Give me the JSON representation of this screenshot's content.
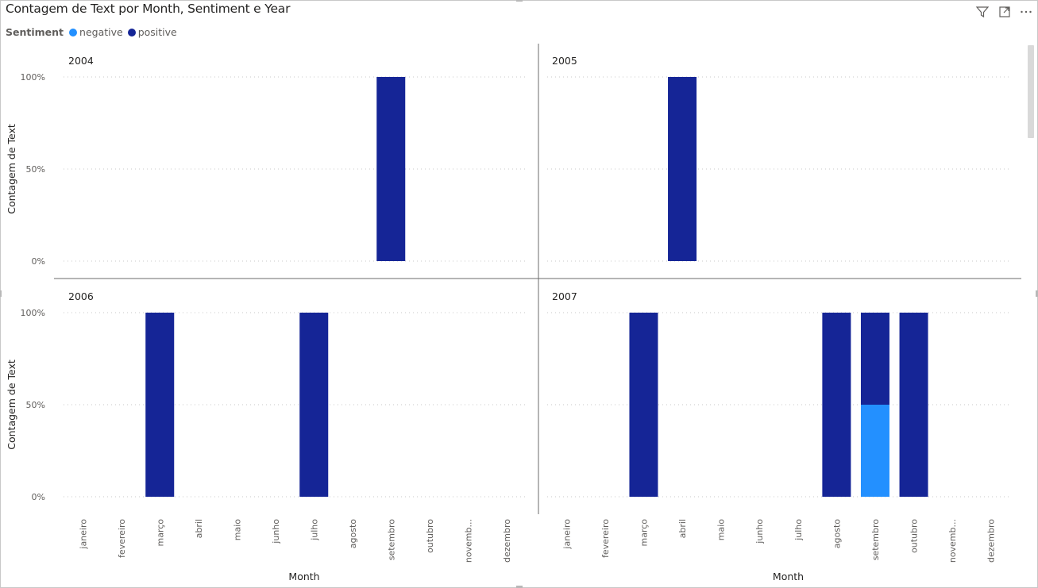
{
  "visual": {
    "title": "Contagem de Text por Month, Sentiment e Year",
    "legend_title": "Sentiment",
    "legend_items": [
      {
        "label": "negative",
        "color": "#2390ff"
      },
      {
        "label": "positive",
        "color": "#152596"
      }
    ],
    "header_icons": [
      "filter-icon",
      "focus-mode-icon",
      "more-options-icon"
    ]
  },
  "chart_data": {
    "type": "bar",
    "stacked": "100%",
    "xlabel": "Month",
    "ylabel": "Contagem de Text",
    "y_ticks": [
      "0%",
      "50%",
      "100%"
    ],
    "ylim": [
      0,
      1
    ],
    "grid": true,
    "legend_placement": "top-left",
    "categories": [
      "janeiro",
      "fevereiro",
      "março",
      "abril",
      "maio",
      "junho",
      "julho",
      "agosto",
      "setembro",
      "outubro",
      "novemb...",
      "dezembro"
    ],
    "panels": [
      {
        "year": "2004",
        "series": [
          {
            "name": "negative",
            "values": [
              0,
              0,
              0,
              0,
              0,
              0,
              0,
              0,
              0,
              0,
              0,
              0
            ]
          },
          {
            "name": "positive",
            "values": [
              0,
              0,
              0,
              0,
              0,
              0,
              0,
              0,
              1,
              0,
              0,
              0
            ]
          }
        ]
      },
      {
        "year": "2005",
        "series": [
          {
            "name": "negative",
            "values": [
              0,
              0,
              0,
              0,
              0,
              0,
              0,
              0,
              0,
              0,
              0,
              0
            ]
          },
          {
            "name": "positive",
            "values": [
              0,
              0,
              0,
              1,
              0,
              0,
              0,
              0,
              0,
              0,
              0,
              0
            ]
          }
        ]
      },
      {
        "year": "2006",
        "series": [
          {
            "name": "negative",
            "values": [
              0,
              0,
              0,
              0,
              0,
              0,
              0,
              0,
              0,
              0,
              0,
              0
            ]
          },
          {
            "name": "positive",
            "values": [
              0,
              0,
              1,
              0,
              0,
              0,
              1,
              0,
              0,
              0,
              0,
              0
            ]
          }
        ]
      },
      {
        "year": "2007",
        "series": [
          {
            "name": "negative",
            "values": [
              0,
              0,
              0,
              0,
              0,
              0,
              0,
              0,
              0.5,
              0,
              0,
              0
            ]
          },
          {
            "name": "positive",
            "values": [
              0,
              0,
              1,
              0,
              0,
              0,
              0,
              1,
              0.5,
              1,
              0,
              0
            ]
          }
        ]
      }
    ]
  }
}
